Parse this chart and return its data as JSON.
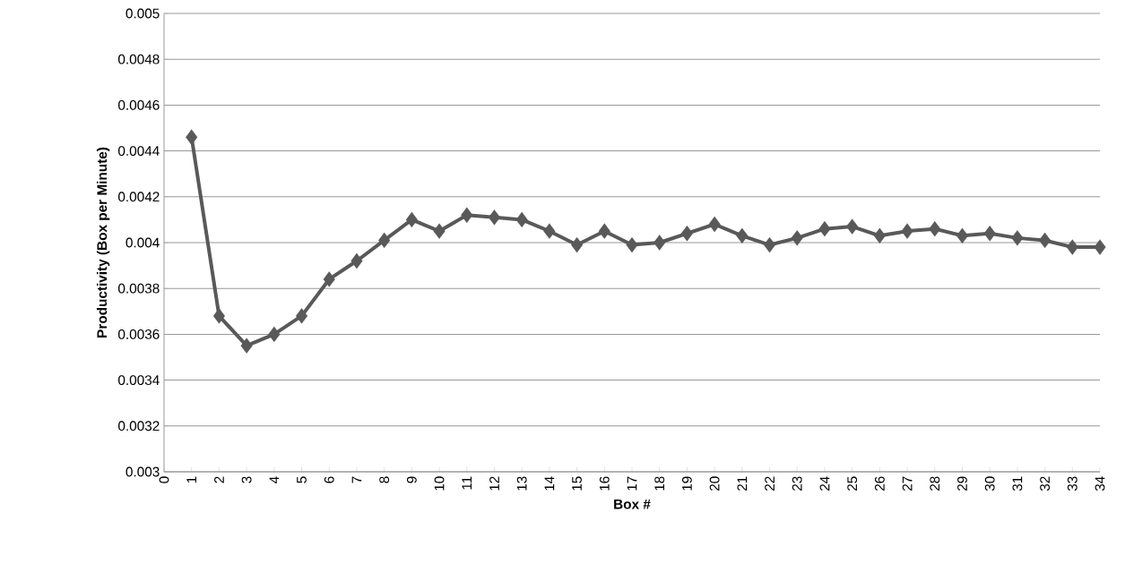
{
  "chart_data": {
    "type": "line",
    "xlabel": "Box #",
    "ylabel": "Productivity (Box per Minute)",
    "x": [
      1,
      2,
      3,
      4,
      5,
      6,
      7,
      8,
      9,
      10,
      11,
      12,
      13,
      14,
      15,
      16,
      17,
      18,
      19,
      20,
      21,
      22,
      23,
      24,
      25,
      26,
      27,
      28,
      29,
      30,
      31,
      32,
      33,
      34
    ],
    "series": [
      {
        "color": "#595959",
        "values": [
          0.00446,
          0.00368,
          0.00355,
          0.0036,
          0.00368,
          0.00384,
          0.00392,
          0.00401,
          0.0041,
          0.00405,
          0.00412,
          0.00411,
          0.0041,
          0.00405,
          0.00399,
          0.00405,
          0.00399,
          0.004,
          0.00404,
          0.00408,
          0.00403,
          0.00399,
          0.00402,
          0.00406,
          0.00407,
          0.00403,
          0.00405,
          0.00406,
          0.00403,
          0.00404,
          0.00402,
          0.00401,
          0.00398,
          0.00398
        ]
      }
    ],
    "xlim": [
      0,
      34
    ],
    "xticks": [
      0,
      1,
      2,
      3,
      4,
      5,
      6,
      7,
      8,
      9,
      10,
      11,
      12,
      13,
      14,
      15,
      16,
      17,
      18,
      19,
      20,
      21,
      22,
      23,
      24,
      25,
      26,
      27,
      28,
      29,
      30,
      31,
      32,
      33,
      34
    ],
    "ylim": [
      0.003,
      0.005
    ],
    "yticks": [
      0.003,
      0.0032,
      0.0034,
      0.0036,
      0.0038,
      0.004,
      0.0042,
      0.0044,
      0.0046,
      0.0048,
      0.005
    ],
    "grid": "y",
    "marker": "diamond",
    "line_style": "solid"
  }
}
